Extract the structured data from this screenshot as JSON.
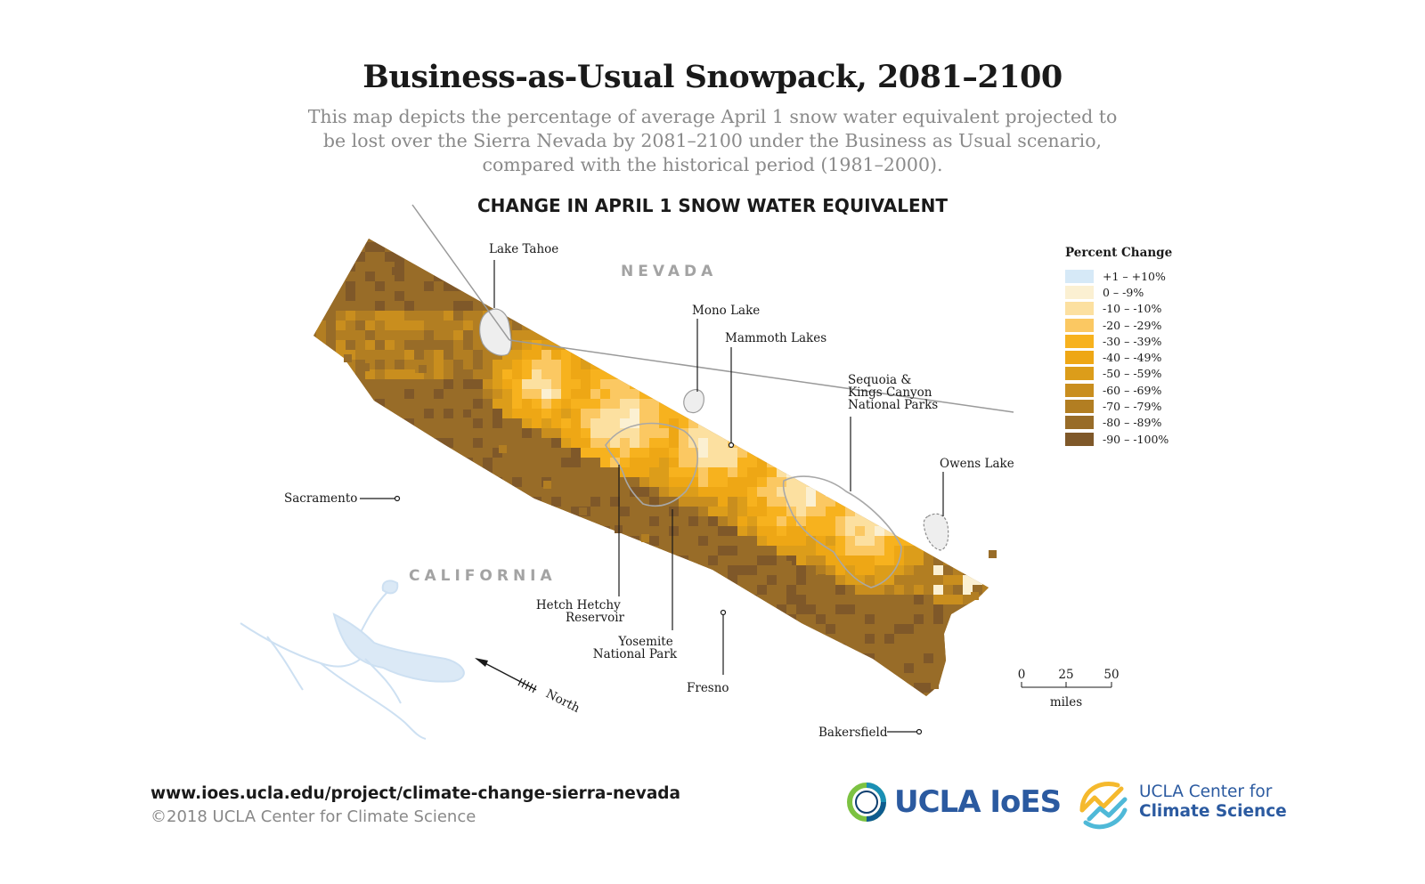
{
  "title": "Business-as-Usual Snowpack, 2081–2100",
  "subtitle": "This map depicts the percentage of average April 1 snow water equivalent projected to be lost over the Sierra Nevada by 2081–2100 under the Business as Usual scenario, compared with the historical period (1981–2000).",
  "map_heading": "CHANGE IN APRIL 1 SNOW WATER EQUIVALENT",
  "regions": {
    "nevada": "NEVADA",
    "california": "CALIFORNIA"
  },
  "places": {
    "lake_tahoe": "Lake Tahoe",
    "mono_lake": "Mono Lake",
    "mammoth_lakes": "Mammoth Lakes",
    "sequoia_kings_canyon": [
      "Sequoia &",
      "Kings Canyon",
      "National Parks"
    ],
    "owens_lake": "Owens Lake",
    "sacramento": "Sacramento",
    "hetch_hetchy": [
      "Hetch Hetchy",
      "Reservoir"
    ],
    "yosemite": [
      "Yosemite",
      "National Park"
    ],
    "fresno": "Fresno",
    "bakersfield": "Bakersfield"
  },
  "north_arrow": "North",
  "legend": {
    "title": "Percent Change",
    "items": [
      {
        "label": "+1 – +10%",
        "color": "#d6e9f7"
      },
      {
        "label": "0 – -9%",
        "color": "#fbf0d2"
      },
      {
        "label": "-10 – -10%",
        "color": "#fce0a0"
      },
      {
        "label": "-20 – -29%",
        "color": "#fbc862"
      },
      {
        "label": "-30 – -39%",
        "color": "#f7b21e"
      },
      {
        "label": "-40 – -49%",
        "color": "#eea715"
      },
      {
        "label": "-50 – -59%",
        "color": "#dc9d1a"
      },
      {
        "label": "-60 – -69%",
        "color": "#c98e1e"
      },
      {
        "label": "-70 – -79%",
        "color": "#b27e22"
      },
      {
        "label": "-80 – -89%",
        "color": "#986c28"
      },
      {
        "label": "-90 – -100%",
        "color": "#7f5829"
      }
    ]
  },
  "scale_bar": {
    "ticks": [
      "0",
      "25",
      "50"
    ],
    "unit": "miles"
  },
  "footer": {
    "url": "www.ioes.ucla.edu/project/climate-change-sierra-nevada",
    "copyright": "©2018 UCLA Center for Climate Science"
  },
  "logos": {
    "ioes": "UCLA IoES",
    "ccs_line1": "UCLA Center for",
    "ccs_line2": "Climate Science"
  }
}
